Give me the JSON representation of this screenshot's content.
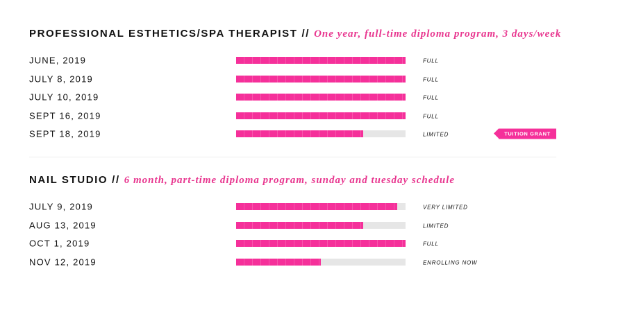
{
  "sections": [
    {
      "title": "PROFESSIONAL ESTHETICS/SPA THERAPIST",
      "separator": "//",
      "subtitle": "One year, full-time diploma program, 3 days/week",
      "rows": [
        {
          "date": "JUNE, 2019",
          "fill": 100,
          "status": "FULL"
        },
        {
          "date": "JULY 8, 2019",
          "fill": 100,
          "status": "FULL"
        },
        {
          "date": "JULY 10, 2019",
          "fill": 100,
          "status": "FULL"
        },
        {
          "date": "SEPT 16, 2019",
          "fill": 100,
          "status": "FULL"
        },
        {
          "date": "SEPT 18, 2019",
          "fill": 75,
          "status": "LIMITED",
          "badge": "TUITION GRANT"
        }
      ]
    },
    {
      "title": "NAIL STUDIO",
      "separator": "//",
      "subtitle": "6 month, part-time diploma program, sunday and tuesday schedule",
      "rows": [
        {
          "date": "JULY 9, 2019",
          "fill": 95,
          "status": "VERY LIMITED"
        },
        {
          "date": "AUG 13, 2019",
          "fill": 75,
          "status": "LIMITED"
        },
        {
          "date": "OCT 1, 2019",
          "fill": 100,
          "status": "FULL"
        },
        {
          "date": "NOV 12, 2019",
          "fill": 50,
          "status": "ENROLLING NOW"
        }
      ]
    }
  ]
}
